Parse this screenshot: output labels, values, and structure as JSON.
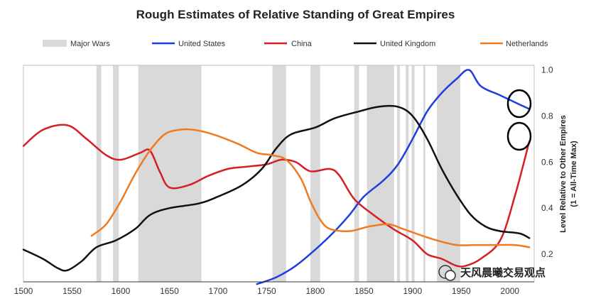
{
  "chart_data": {
    "type": "line",
    "title": "Rough Estimates of Relative Standing of Great Empires",
    "ylabel_line1": "Level Relative to Other Empires",
    "ylabel_line2": "(1 = All-Time Max)",
    "xlim": [
      1500,
      2025
    ],
    "ylim": [
      0.08,
      1.02
    ],
    "x_ticks": [
      1500,
      1550,
      1600,
      1650,
      1700,
      1750,
      1800,
      1850,
      1900,
      1950,
      2000
    ],
    "y_ticks": [
      1.0,
      0.8,
      0.6,
      0.4,
      0.2
    ],
    "y_tick_labels": [
      "1.0",
      "0.8",
      "0.6",
      "0.4",
      "0.2"
    ],
    "legend_labels": [
      "Major Wars",
      "United States",
      "China",
      "United Kingdom",
      "Netherlands"
    ],
    "major_wars": [
      [
        1575,
        1580
      ],
      [
        1592,
        1598
      ],
      [
        1618,
        1683
      ],
      [
        1756,
        1770
      ],
      [
        1795,
        1805
      ],
      [
        1840,
        1845
      ],
      [
        1853,
        1881
      ],
      [
        1884,
        1887
      ],
      [
        1893,
        1896
      ],
      [
        1899,
        1902
      ],
      [
        1911,
        1913
      ],
      [
        1925,
        1949
      ]
    ],
    "series": [
      {
        "name": "United States",
        "color": "#1f3ee0",
        "points": [
          [
            1740,
            0.07
          ],
          [
            1760,
            0.1
          ],
          [
            1780,
            0.15
          ],
          [
            1800,
            0.22
          ],
          [
            1820,
            0.3
          ],
          [
            1835,
            0.37
          ],
          [
            1850,
            0.45
          ],
          [
            1870,
            0.52
          ],
          [
            1885,
            0.59
          ],
          [
            1900,
            0.7
          ],
          [
            1915,
            0.82
          ],
          [
            1930,
            0.9
          ],
          [
            1945,
            0.96
          ],
          [
            1958,
            1.0
          ],
          [
            1970,
            0.93
          ],
          [
            1990,
            0.89
          ],
          [
            2010,
            0.85
          ],
          [
            2020,
            0.83
          ]
        ]
      },
      {
        "name": "China",
        "color": "#d41f26",
        "points": [
          [
            1500,
            0.67
          ],
          [
            1520,
            0.74
          ],
          [
            1545,
            0.76
          ],
          [
            1565,
            0.7
          ],
          [
            1585,
            0.63
          ],
          [
            1600,
            0.61
          ],
          [
            1620,
            0.64
          ],
          [
            1630,
            0.65
          ],
          [
            1640,
            0.56
          ],
          [
            1650,
            0.49
          ],
          [
            1670,
            0.5
          ],
          [
            1690,
            0.54
          ],
          [
            1710,
            0.57
          ],
          [
            1730,
            0.58
          ],
          [
            1750,
            0.59
          ],
          [
            1765,
            0.61
          ],
          [
            1780,
            0.6
          ],
          [
            1795,
            0.56
          ],
          [
            1815,
            0.57
          ],
          [
            1825,
            0.54
          ],
          [
            1840,
            0.44
          ],
          [
            1860,
            0.37
          ],
          [
            1880,
            0.31
          ],
          [
            1900,
            0.26
          ],
          [
            1915,
            0.2
          ],
          [
            1930,
            0.18
          ],
          [
            1945,
            0.15
          ],
          [
            1955,
            0.15
          ],
          [
            1970,
            0.18
          ],
          [
            1990,
            0.26
          ],
          [
            2005,
            0.45
          ],
          [
            2020,
            0.69
          ]
        ]
      },
      {
        "name": "United Kingdom",
        "color": "#111111",
        "points": [
          [
            1500,
            0.22
          ],
          [
            1520,
            0.18
          ],
          [
            1535,
            0.14
          ],
          [
            1545,
            0.13
          ],
          [
            1560,
            0.17
          ],
          [
            1575,
            0.23
          ],
          [
            1595,
            0.26
          ],
          [
            1615,
            0.31
          ],
          [
            1630,
            0.37
          ],
          [
            1650,
            0.4
          ],
          [
            1680,
            0.42
          ],
          [
            1700,
            0.45
          ],
          [
            1725,
            0.5
          ],
          [
            1745,
            0.57
          ],
          [
            1760,
            0.66
          ],
          [
            1775,
            0.72
          ],
          [
            1800,
            0.75
          ],
          [
            1820,
            0.79
          ],
          [
            1845,
            0.82
          ],
          [
            1865,
            0.84
          ],
          [
            1885,
            0.84
          ],
          [
            1900,
            0.8
          ],
          [
            1915,
            0.7
          ],
          [
            1930,
            0.57
          ],
          [
            1945,
            0.46
          ],
          [
            1960,
            0.37
          ],
          [
            1975,
            0.32
          ],
          [
            1990,
            0.3
          ],
          [
            2010,
            0.29
          ],
          [
            2020,
            0.27
          ]
        ]
      },
      {
        "name": "Netherlands",
        "color": "#f07a1f",
        "points": [
          [
            1570,
            0.28
          ],
          [
            1585,
            0.33
          ],
          [
            1600,
            0.43
          ],
          [
            1615,
            0.55
          ],
          [
            1630,
            0.65
          ],
          [
            1645,
            0.72
          ],
          [
            1660,
            0.74
          ],
          [
            1675,
            0.74
          ],
          [
            1695,
            0.72
          ],
          [
            1720,
            0.68
          ],
          [
            1740,
            0.64
          ],
          [
            1755,
            0.63
          ],
          [
            1770,
            0.61
          ],
          [
            1785,
            0.53
          ],
          [
            1795,
            0.43
          ],
          [
            1805,
            0.35
          ],
          [
            1815,
            0.31
          ],
          [
            1835,
            0.3
          ],
          [
            1855,
            0.32
          ],
          [
            1875,
            0.33
          ],
          [
            1890,
            0.31
          ],
          [
            1910,
            0.28
          ],
          [
            1925,
            0.26
          ],
          [
            1945,
            0.24
          ],
          [
            1965,
            0.24
          ],
          [
            1985,
            0.24
          ],
          [
            2005,
            0.24
          ],
          [
            2020,
            0.23
          ]
        ]
      }
    ],
    "watermark": "天风晨曦交易观点"
  }
}
